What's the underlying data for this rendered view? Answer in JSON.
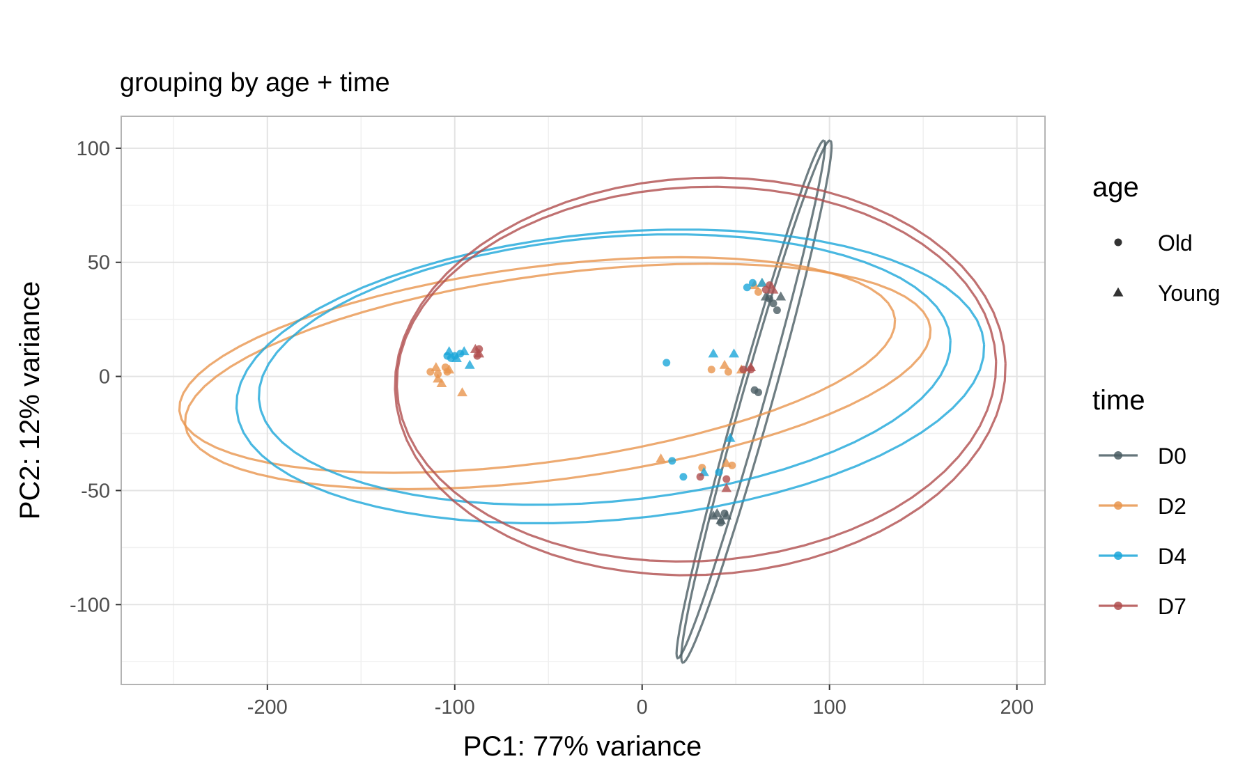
{
  "chart_data": {
    "type": "scatter",
    "title": "grouping by age + time",
    "xlabel": "PC1: 77% variance",
    "ylabel": "PC2: 12% variance",
    "xlim": [
      -278,
      215
    ],
    "ylim": [
      -135,
      114
    ],
    "x_ticks": [
      -200,
      -100,
      0,
      100,
      200
    ],
    "y_ticks": [
      100,
      50,
      0,
      -50,
      -100
    ],
    "x_tick_labels": [
      "-200",
      "-100",
      "0",
      "100",
      "200"
    ],
    "y_tick_labels": [
      "100",
      "50",
      "0",
      "-50",
      "-100"
    ],
    "grid": true,
    "legend_placement": "right",
    "legend_age": {
      "title": "age",
      "items": [
        {
          "label": "Old",
          "shape": "circle"
        },
        {
          "label": "Young",
          "shape": "triangle"
        }
      ]
    },
    "legend_time": {
      "title": "time",
      "items": [
        {
          "label": "D0",
          "color": "#4a5d63"
        },
        {
          "label": "D2",
          "color": "#e8954d"
        },
        {
          "label": "D4",
          "color": "#1ba6d9"
        },
        {
          "label": "D7",
          "color": "#b04d4d"
        }
      ]
    },
    "series": [
      {
        "time": "D0",
        "age": "Old",
        "color": "#4a5d63",
        "shape": "circle",
        "points": [
          [
            70,
            32
          ],
          [
            72,
            29
          ],
          [
            60,
            -6
          ],
          [
            62,
            -7
          ],
          [
            44,
            -60
          ],
          [
            42,
            -64
          ],
          [
            68,
            34
          ]
        ]
      },
      {
        "time": "D0",
        "age": "Young",
        "color": "#4a5d63",
        "shape": "triangle",
        "points": [
          [
            74,
            35
          ],
          [
            66,
            35
          ],
          [
            40,
            -60
          ],
          [
            42,
            -63
          ],
          [
            38,
            -61
          ],
          [
            45,
            -61
          ]
        ]
      },
      {
        "time": "D2",
        "age": "Old",
        "color": "#e8954d",
        "shape": "circle",
        "points": [
          [
            -113,
            2
          ],
          [
            -109,
            1
          ],
          [
            -104,
            2
          ],
          [
            -105,
            4
          ],
          [
            37,
            3
          ],
          [
            46,
            2
          ],
          [
            32,
            -40
          ],
          [
            48,
            -39
          ],
          [
            62,
            37
          ]
        ]
      },
      {
        "time": "D2",
        "age": "Young",
        "color": "#e8954d",
        "shape": "triangle",
        "points": [
          [
            -110,
            4
          ],
          [
            -109,
            -1
          ],
          [
            -107,
            -3
          ],
          [
            -103,
            3
          ],
          [
            -96,
            -7
          ],
          [
            44,
            5
          ],
          [
            53,
            3
          ],
          [
            10,
            -36
          ],
          [
            45,
            -38
          ],
          [
            60,
            40
          ],
          [
            64,
            41
          ]
        ]
      },
      {
        "time": "D4",
        "age": "Old",
        "color": "#1ba6d9",
        "shape": "circle",
        "points": [
          [
            -104,
            9
          ],
          [
            -102,
            8
          ],
          [
            -100,
            9
          ],
          [
            -97,
            10
          ],
          [
            13,
            6
          ],
          [
            16,
            -37
          ],
          [
            22,
            -44
          ],
          [
            41,
            -42
          ],
          [
            56,
            39
          ],
          [
            59,
            41
          ]
        ]
      },
      {
        "time": "D4",
        "age": "Young",
        "color": "#1ba6d9",
        "shape": "triangle",
        "points": [
          [
            -103,
            11
          ],
          [
            -99,
            8
          ],
          [
            -95,
            11
          ],
          [
            -92,
            5
          ],
          [
            38,
            10
          ],
          [
            49,
            10
          ],
          [
            33,
            -42
          ],
          [
            47,
            -27
          ],
          [
            64,
            41
          ]
        ]
      },
      {
        "time": "D7",
        "age": "Old",
        "color": "#b04d4d",
        "shape": "circle",
        "points": [
          [
            -87,
            12
          ],
          [
            -88,
            9
          ],
          [
            54,
            3
          ],
          [
            58,
            3
          ],
          [
            31,
            -44
          ],
          [
            45,
            -45
          ],
          [
            68,
            40
          ],
          [
            66,
            38
          ]
        ]
      },
      {
        "time": "D7",
        "age": "Young",
        "color": "#b04d4d",
        "shape": "triangle",
        "points": [
          [
            -89,
            12
          ],
          [
            -87,
            10
          ],
          [
            58,
            4
          ],
          [
            45,
            -49
          ],
          [
            70,
            38
          ]
        ]
      }
    ],
    "ellipses": [
      {
        "time": "D0",
        "age": "Old",
        "color": "#4a5d63",
        "center": [
          58,
          -10
        ],
        "rx": 120,
        "ry": 7,
        "angle_deg": 71
      },
      {
        "time": "D0",
        "age": "Young",
        "color": "#4a5d63",
        "center": [
          61,
          -11
        ],
        "rx": 121,
        "ry": 8,
        "angle_deg": 71
      },
      {
        "time": "D2",
        "age": "Old",
        "color": "#e8954d",
        "center": [
          -56,
          5
        ],
        "rx": 192,
        "ry": 43,
        "angle_deg": 6
      },
      {
        "time": "D2",
        "age": "Young",
        "color": "#e8954d",
        "center": [
          -45,
          0
        ],
        "rx": 200,
        "ry": 45,
        "angle_deg": 6
      },
      {
        "time": "D4",
        "age": "Old",
        "color": "#1ba6d9",
        "center": [
          -20,
          3
        ],
        "rx": 185,
        "ry": 58,
        "angle_deg": 4
      },
      {
        "time": "D4",
        "age": "Young",
        "color": "#1ba6d9",
        "center": [
          -17,
          0
        ],
        "rx": 200,
        "ry": 63,
        "angle_deg": 4
      },
      {
        "time": "D7",
        "age": "Old",
        "color": "#b04d4d",
        "center": [
          29,
          1
        ],
        "rx": 160,
        "ry": 82,
        "angle_deg": 2
      },
      {
        "time": "D7",
        "age": "Young",
        "color": "#b04d4d",
        "center": [
          31,
          0
        ],
        "rx": 163,
        "ry": 87,
        "angle_deg": 2
      }
    ]
  }
}
